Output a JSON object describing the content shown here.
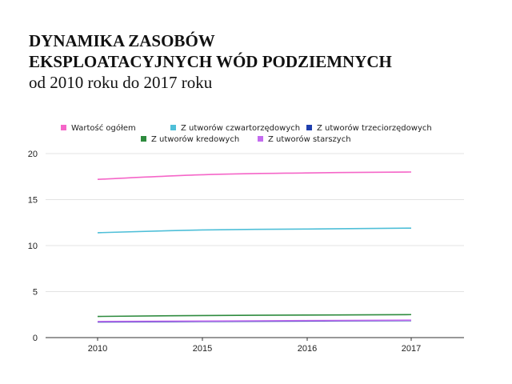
{
  "title": {
    "line1": "DYNAMIKA ZASOBÓW",
    "line2": "EKSPLOATACYJNYCH WÓD PODZIEMNYCH",
    "line3": "od 2010 roku do 2017 roku"
  },
  "chart_data": {
    "type": "line",
    "title": "DYNAMIKA ZASOBÓW EKSPLOATACYJNYCH WÓD PODZIEMNYCH od 2010 roku do 2017 roku",
    "xlabel": "",
    "ylabel": "",
    "x": [
      "2010",
      "2015",
      "2016",
      "2017"
    ],
    "ylim": [
      0,
      20
    ],
    "yticks": [
      0,
      5,
      10,
      15,
      20
    ],
    "grid": "horizontal",
    "legend_position": "top",
    "series": [
      {
        "name": "Wartość ogółem",
        "color": "#f566c8",
        "values": [
          17.2,
          17.7,
          17.9,
          18.0
        ]
      },
      {
        "name": "Z utworów czwartorzędowych",
        "color": "#4fbfd8",
        "values": [
          11.4,
          11.7,
          11.8,
          11.9
        ]
      },
      {
        "name": "Z utworów trzeciorzędowych",
        "color": "#1f3fae",
        "values": [
          1.7,
          1.75,
          1.8,
          1.85
        ]
      },
      {
        "name": "Z utworów kredowych",
        "color": "#2e8b3e",
        "values": [
          2.3,
          2.4,
          2.45,
          2.5
        ]
      },
      {
        "name": "Z utworów starszych",
        "color": "#c46cf0",
        "values": [
          1.75,
          1.8,
          1.85,
          1.9
        ]
      }
    ]
  }
}
